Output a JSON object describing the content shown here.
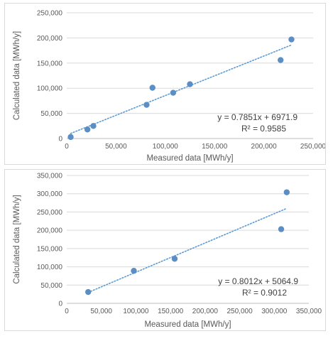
{
  "chart_data": [
    {
      "type": "scatter",
      "xlabel": "Measured data [MWh/y]",
      "ylabel": "Calculated data [MWh/y]",
      "xlim": [
        0,
        250000
      ],
      "ylim": [
        0,
        250000
      ],
      "x_ticks": [
        "0",
        "50,000",
        "100,000",
        "150,000",
        "200,000",
        "250,000"
      ],
      "y_ticks": [
        "0",
        "50,000",
        "100,000",
        "150,000",
        "200,000",
        "250,000"
      ],
      "x_step": 50000,
      "y_step": 50000,
      "grid": "horizontal",
      "points": [
        {
          "x": 4000,
          "y": 3000
        },
        {
          "x": 21000,
          "y": 18000
        },
        {
          "x": 27000,
          "y": 25000
        },
        {
          "x": 81000,
          "y": 67000
        },
        {
          "x": 87000,
          "y": 101000
        },
        {
          "x": 108000,
          "y": 91000
        },
        {
          "x": 125000,
          "y": 108000
        },
        {
          "x": 217000,
          "y": 156000
        },
        {
          "x": 228000,
          "y": 197000
        }
      ],
      "trendline": {
        "slope": 0.7851,
        "intercept": 6971.9,
        "x_start": 4000,
        "x_end": 228000,
        "style": "dotted"
      },
      "equation": "y = 0.7851x + 6971.9",
      "r_squared": "R² = 0.9585",
      "marker_color": "#5b8ec4",
      "trend_color": "#5b9bd5"
    },
    {
      "type": "scatter",
      "xlabel": "Measured data [MWh/y]",
      "ylabel": "Calculated data [MWh/y]",
      "xlim": [
        0,
        350000
      ],
      "ylim": [
        0,
        350000
      ],
      "x_ticks": [
        "0",
        "50,000",
        "100,000",
        "150,000",
        "200,000",
        "250,000",
        "300,000",
        "350,000"
      ],
      "y_ticks": [
        "0",
        "50,000",
        "100,000",
        "150,000",
        "200,000",
        "250,000",
        "300,000",
        "350,000"
      ],
      "x_step": 50000,
      "y_step": 50000,
      "grid": "horizontal",
      "points": [
        {
          "x": 31000,
          "y": 31000
        },
        {
          "x": 97000,
          "y": 89000
        },
        {
          "x": 156000,
          "y": 122000
        },
        {
          "x": 310000,
          "y": 203000
        },
        {
          "x": 318000,
          "y": 304000
        }
      ],
      "trendline": {
        "slope": 0.8012,
        "intercept": 5064.9,
        "x_start": 31000,
        "x_end": 318000,
        "style": "dotted"
      },
      "equation": "y = 0.8012x + 5064.9",
      "r_squared": "R² = 0.9012",
      "marker_color": "#5b8ec4",
      "trend_color": "#5b9bd5"
    }
  ]
}
